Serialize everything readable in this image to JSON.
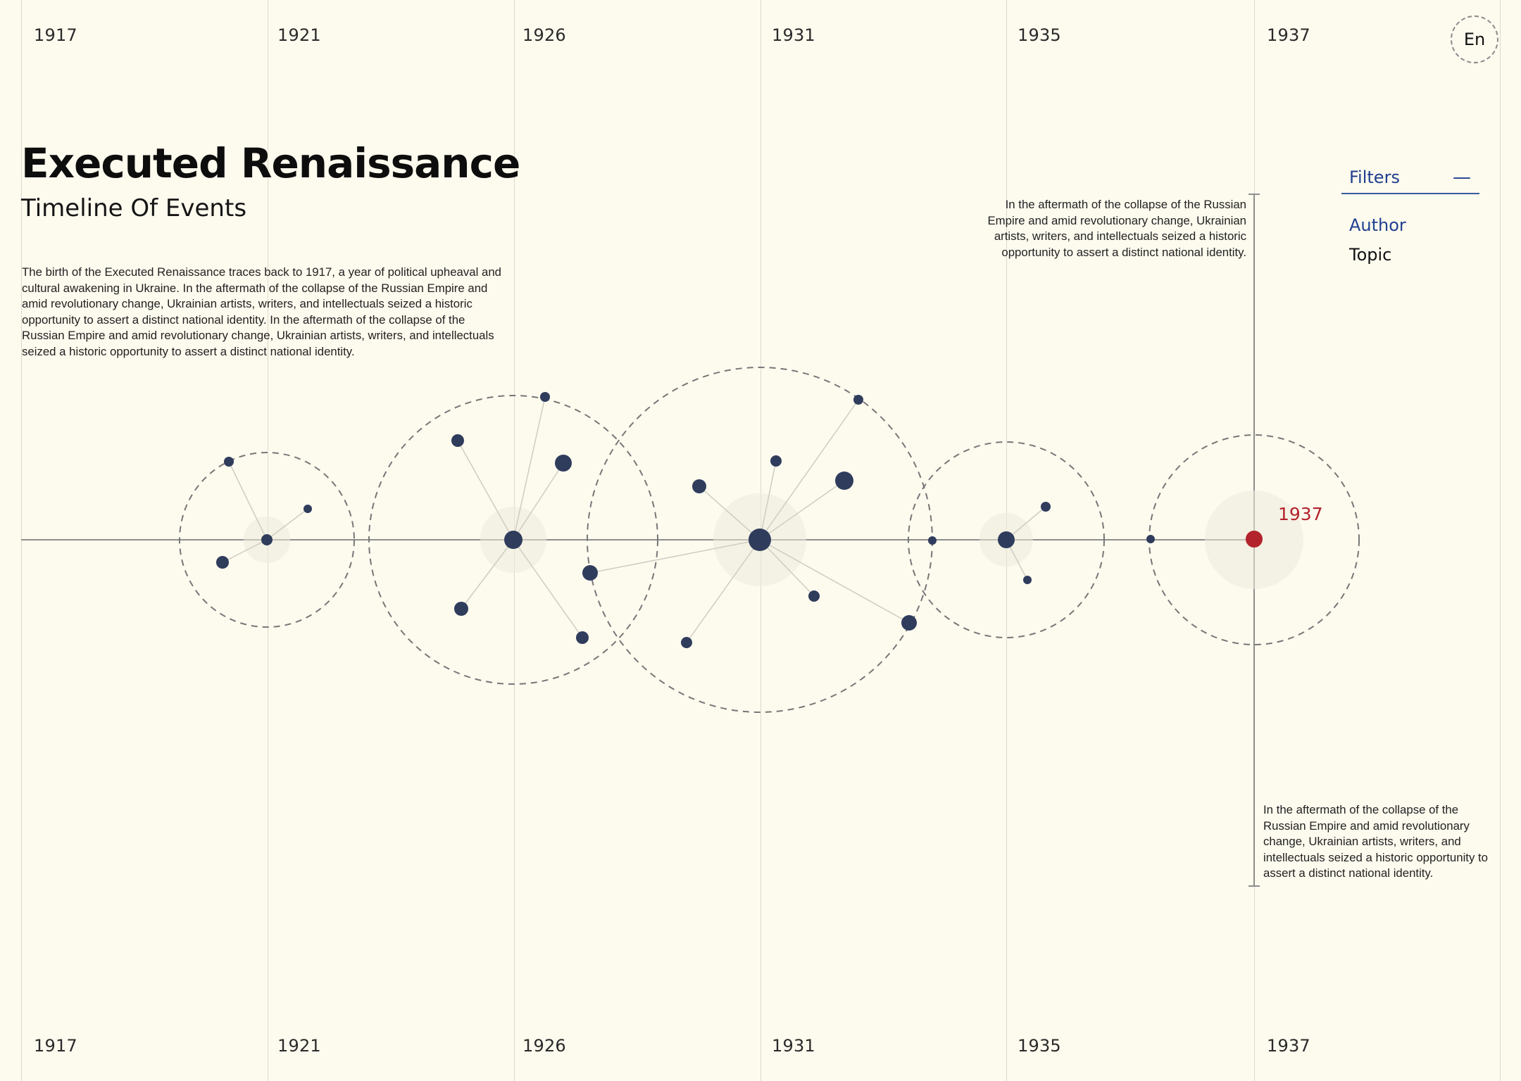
{
  "years": [
    "1917",
    "1921",
    "1926",
    "1931",
    "1935",
    "1937"
  ],
  "language": {
    "label": "En"
  },
  "header": {
    "title": "Executed Renaissance",
    "subtitle": "Timeline Of Events"
  },
  "intro": "The birth of the Executed Renaissance traces back to 1917, a year of political upheaval and cultural awakening in Ukraine. In the aftermath of the collapse of the Russian Empire and amid revolutionary change, Ukrainian artists, writers, and intellectuals seized a historic opportunity to assert a distinct national identity. In the aftermath of the collapse of the Russian Empire and amid revolutionary change, Ukrainian artists, writers, and intellectuals seized a historic opportunity to assert a distinct national identity.",
  "notes": {
    "top": "In the aftermath of the collapse of the Russian Empire and amid revolutionary change, Ukrainian artists, writers, and intellectuals seized a historic opportunity to assert a distinct national identity.",
    "bottom": "In the aftermath of the collapse of the Russian Empire and amid revolutionary change, Ukrainian artists, writers, and intellectuals seized a historic opportunity to assert a distinct national identity."
  },
  "filters": {
    "label": "Filters",
    "toggle": "—",
    "options": [
      "Author",
      "Topic"
    ]
  },
  "selected_year": "1937",
  "colors": {
    "background": "#fdfaee",
    "node": "#2f3c5c",
    "accent": "#b3232c",
    "filter_active": "#1f3f8f",
    "dashed_ring": "#777777"
  }
}
